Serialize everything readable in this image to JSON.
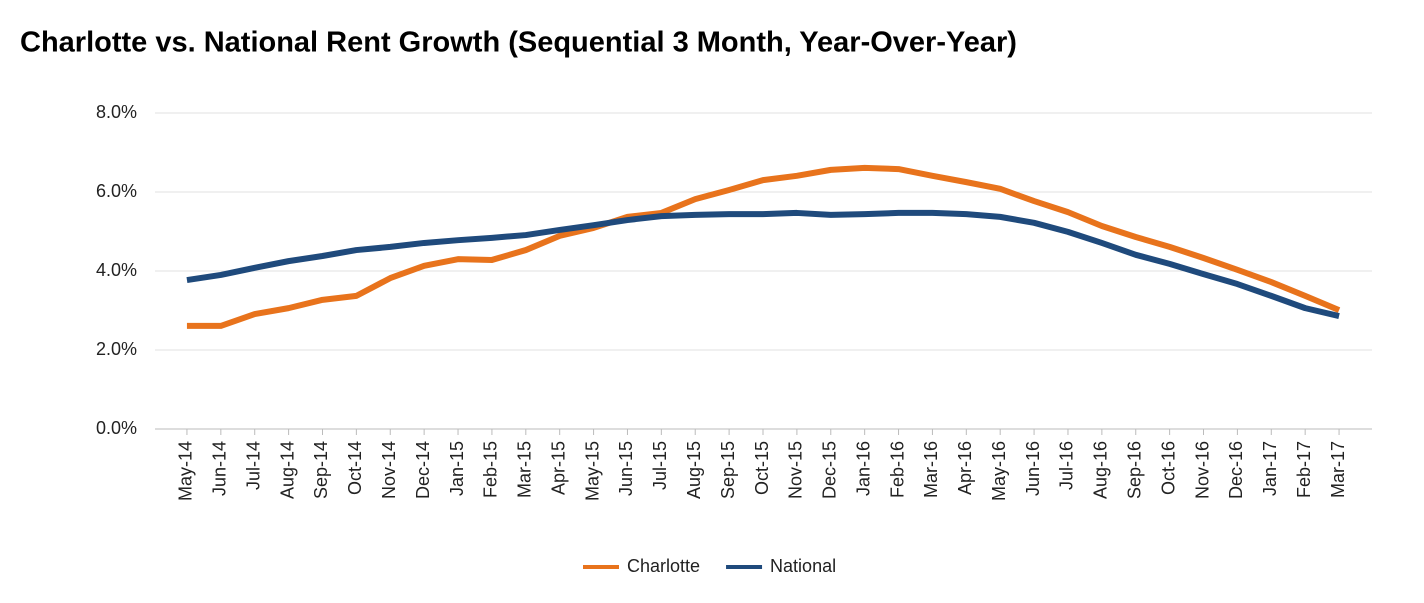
{
  "chart_data": {
    "type": "line",
    "title": "Charlotte vs. National Rent Growth (Sequential 3 Month, Year-Over-Year)",
    "categories": [
      "May-14",
      "Jun-14",
      "Jul-14",
      "Aug-14",
      "Sep-14",
      "Oct-14",
      "Nov-14",
      "Dec-14",
      "Jan-15",
      "Feb-15",
      "Mar-15",
      "Apr-15",
      "May-15",
      "Jun-15",
      "Jul-15",
      "Aug-15",
      "Sep-15",
      "Oct-15",
      "Nov-15",
      "Dec-15",
      "Jan-16",
      "Feb-16",
      "Mar-16",
      "Apr-16",
      "May-16",
      "Jun-16",
      "Jul-16",
      "Aug-16",
      "Sep-16",
      "Oct-16",
      "Nov-16",
      "Dec-16",
      "Jan-17",
      "Feb-17",
      "Mar-17"
    ],
    "series": [
      {
        "name": "Charlotte",
        "color": "#e8731c",
        "values": [
          2.61,
          2.61,
          2.91,
          3.06,
          3.27,
          3.37,
          3.82,
          4.13,
          4.3,
          4.28,
          4.53,
          4.89,
          5.09,
          5.37,
          5.47,
          5.82,
          6.05,
          6.3,
          6.41,
          6.56,
          6.61,
          6.58,
          6.41,
          6.25,
          6.08,
          5.77,
          5.49,
          5.14,
          4.86,
          4.61,
          4.33,
          4.03,
          3.72,
          3.37,
          3.01
        ]
      },
      {
        "name": "National",
        "color": "#1f4a7c",
        "values": [
          3.77,
          3.9,
          4.08,
          4.25,
          4.38,
          4.53,
          4.61,
          4.71,
          4.78,
          4.84,
          4.91,
          5.04,
          5.16,
          5.29,
          5.39,
          5.42,
          5.44,
          5.44,
          5.47,
          5.42,
          5.44,
          5.47,
          5.47,
          5.44,
          5.37,
          5.22,
          4.99,
          4.71,
          4.41,
          4.18,
          3.92,
          3.67,
          3.37,
          3.06,
          2.86
        ]
      }
    ],
    "ylim": [
      0,
      8
    ],
    "yticks": [
      {
        "value": 0,
        "label": "0.0%"
      },
      {
        "value": 2,
        "label": "2.0%"
      },
      {
        "value": 4,
        "label": "4.0%"
      },
      {
        "value": 6,
        "label": "6.0%"
      },
      {
        "value": 8,
        "label": "8.0%"
      }
    ],
    "grid": true,
    "legend": "bottom"
  }
}
